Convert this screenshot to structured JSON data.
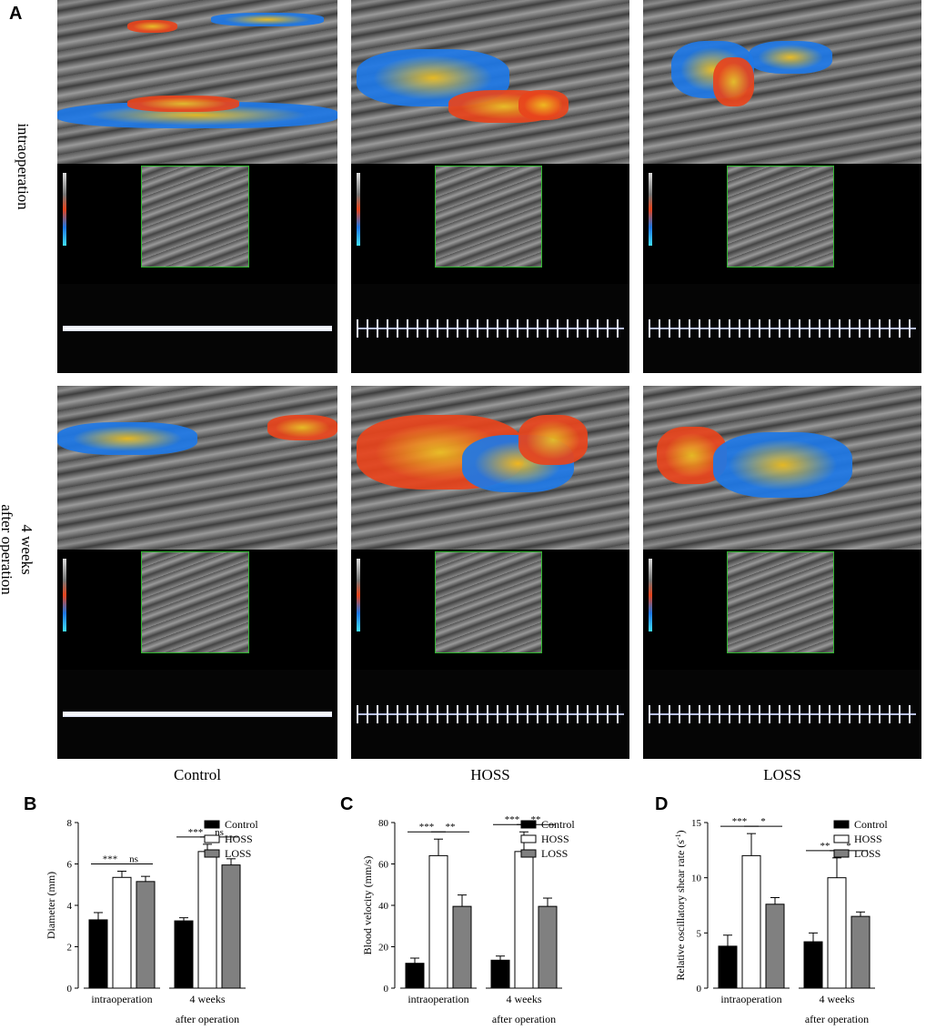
{
  "panel_letters": {
    "a": "A",
    "b": "B",
    "c": "C",
    "d": "D"
  },
  "row_labels": {
    "intraoperation": "intraoperation",
    "after_line1": "4 weeks",
    "after_line2": "after operation"
  },
  "column_labels": [
    "Control",
    "HOSS",
    "LOSS"
  ],
  "colors": {
    "control": "#000000",
    "hoss": "#ffffff",
    "loss": "#808080",
    "flow_red": "#e8441c",
    "flow_blue": "#1e78e6",
    "inset_border": "#2fb52f"
  },
  "chart_data": [
    {
      "type": "bar",
      "panel": "B",
      "ylabel": "Diameter (mm)",
      "ylim": [
        0,
        8
      ],
      "yticks": [
        "0",
        "2",
        "4",
        "6",
        "8"
      ],
      "groups": [
        "intraoperation",
        "4 weeks"
      ],
      "group_sublabel": "after operation",
      "legend": [
        "Control",
        "HOSS",
        "LOSS"
      ],
      "legend_position": "top-right",
      "series": [
        {
          "name": "Control",
          "values": [
            3.3,
            3.25
          ],
          "errors": [
            0.35,
            0.15
          ]
        },
        {
          "name": "HOSS",
          "values": [
            5.35,
            6.6
          ],
          "errors": [
            0.3,
            0.35
          ]
        },
        {
          "name": "LOSS",
          "values": [
            5.15,
            5.95
          ],
          "errors": [
            0.25,
            0.3
          ]
        }
      ],
      "significance": [
        {
          "group": 0,
          "from": 0,
          "to": 1,
          "label": "***"
        },
        {
          "group": 0,
          "from": 1,
          "to": 2,
          "label": "ns"
        },
        {
          "group": 1,
          "from": 0,
          "to": 1,
          "label": "***"
        },
        {
          "group": 1,
          "from": 1,
          "to": 2,
          "label": "ns"
        }
      ]
    },
    {
      "type": "bar",
      "panel": "C",
      "ylabel": "Blood velocity (mm/s)",
      "ylim": [
        0,
        80
      ],
      "yticks": [
        "0",
        "20",
        "40",
        "60",
        "80"
      ],
      "groups": [
        "intraoperation",
        "4 weeks"
      ],
      "group_sublabel": "after operation",
      "legend": [
        "Control",
        "HOSS",
        "LOSS"
      ],
      "legend_position": "top-right",
      "series": [
        {
          "name": "Control",
          "values": [
            12,
            13.5
          ],
          "errors": [
            2.5,
            2.0
          ]
        },
        {
          "name": "HOSS",
          "values": [
            64,
            66
          ],
          "errors": [
            8,
            9.5
          ]
        },
        {
          "name": "LOSS",
          "values": [
            39.5,
            39.5
          ],
          "errors": [
            5.5,
            4.0
          ]
        }
      ],
      "significance": [
        {
          "group": 0,
          "from": 0,
          "to": 1,
          "label": "***"
        },
        {
          "group": 0,
          "from": 1,
          "to": 2,
          "label": "**"
        },
        {
          "group": 1,
          "from": 0,
          "to": 1,
          "label": "***"
        },
        {
          "group": 1,
          "from": 1,
          "to": 2,
          "label": "**"
        }
      ]
    },
    {
      "type": "bar",
      "panel": "D",
      "ylabel": "Relative oscillatory shear rate (s",
      "ylabel_sup": "-1",
      "ylabel_end": ")",
      "ylim": [
        0,
        15
      ],
      "yticks": [
        "0",
        "5",
        "10",
        "15"
      ],
      "groups": [
        "intraoperation",
        "4 weeks"
      ],
      "group_sublabel": "after operation",
      "legend": [
        "Control",
        "HOSS",
        "LOSS"
      ],
      "legend_position": "top-right",
      "series": [
        {
          "name": "Control",
          "values": [
            3.8,
            4.2
          ],
          "errors": [
            1.0,
            0.8
          ]
        },
        {
          "name": "HOSS",
          "values": [
            12.0,
            10.0
          ],
          "errors": [
            2.0,
            1.8
          ]
        },
        {
          "name": "LOSS",
          "values": [
            7.6,
            6.5
          ],
          "errors": [
            0.6,
            0.4
          ]
        }
      ],
      "significance": [
        {
          "group": 0,
          "from": 0,
          "to": 1,
          "label": "***"
        },
        {
          "group": 0,
          "from": 1,
          "to": 2,
          "label": "*"
        },
        {
          "group": 1,
          "from": 0,
          "to": 1,
          "label": "**"
        },
        {
          "group": 1,
          "from": 1,
          "to": 2,
          "label": "*"
        }
      ]
    }
  ]
}
